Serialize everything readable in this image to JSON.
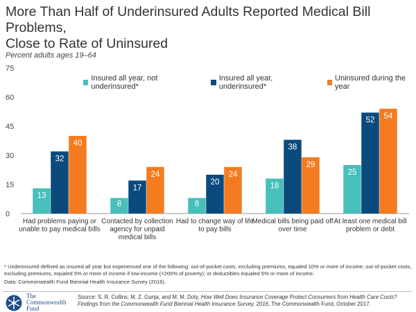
{
  "title_line1": "More Than Half of Underinsured Adults Reported Medical Bill Problems,",
  "title_line2": "Close to Rate of Uninsured",
  "subtitle": "Percent adults ages 19–64",
  "chart_data": {
    "type": "bar",
    "ylim": [
      0,
      75
    ],
    "yticks": [
      0,
      15,
      30,
      45,
      60,
      75
    ],
    "grid": false,
    "legend_position": "top",
    "categories": [
      [
        "Had problems paying or",
        "unable to pay medical bills"
      ],
      [
        "Contacted by collection",
        "agency for unpaid",
        "medical bills"
      ],
      [
        "Had to change way of life",
        "to pay bills"
      ],
      [
        "Medical bills being paid off",
        "over time"
      ],
      [
        "At least one medical bill",
        "problem or debt"
      ]
    ],
    "series": [
      {
        "name": "Insured all year, not underinsured*",
        "color": "#47BFBA",
        "values": [
          13,
          8,
          8,
          18,
          25
        ]
      },
      {
        "name": "Insured all year, underinsured*",
        "color": "#0B4A7D",
        "values": [
          32,
          17,
          20,
          38,
          52
        ]
      },
      {
        "name": "Uninsured during the year",
        "color": "#F47B20",
        "values": [
          40,
          24,
          24,
          29,
          54
        ]
      }
    ]
  },
  "footnote_line1": "* Underinsured defined as insured all year but experienced one of the following: out-of-pocket costs, excluding premiums, equaled 10% or more of income; out-of-pocket costs, excluding premiums, equaled 5% or more of income if low-income (<200% of poverty); or deductibles equaled 5% or more of income.",
  "data_note": "Data: Commonwealth Fund Biennial Health Insurance Survey (2016).",
  "source_prefix": "Source: S. R. Collins, M. Z. Gunja, and M. M. Doty, ",
  "source_title": "How Well Does Insurance Coverage Protect Consumers from Health Care Costs? Findings from the Commonwealth Fund Biennial Health Insurance Survey, 2016",
  "source_suffix": ", The Commonwealth Fund, October 2017.",
  "logo": {
    "line1": "The",
    "line2": "Commonwealth",
    "line3": "Fund"
  }
}
